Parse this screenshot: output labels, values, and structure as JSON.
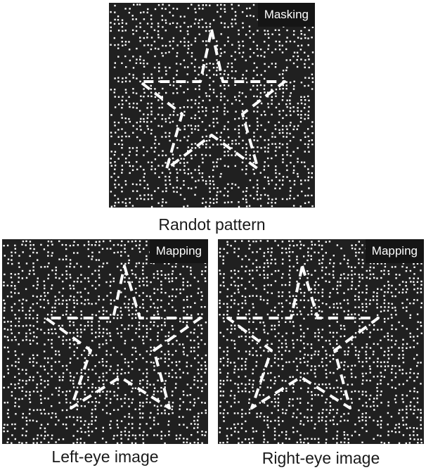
{
  "panels": {
    "top": {
      "badge": "Masking",
      "caption": "Randot pattern"
    },
    "left": {
      "badge": "Mapping",
      "caption": "Left-eye image"
    },
    "right": {
      "badge": "Mapping",
      "caption": "Right-eye image"
    }
  },
  "colors": {
    "background": "#202020",
    "dots": "#ffffff",
    "outline": "#ffffff",
    "badge": "#151515"
  },
  "figure": {
    "pattern": "random-dots",
    "outline_shape": "star",
    "outline_style": "dashed"
  }
}
